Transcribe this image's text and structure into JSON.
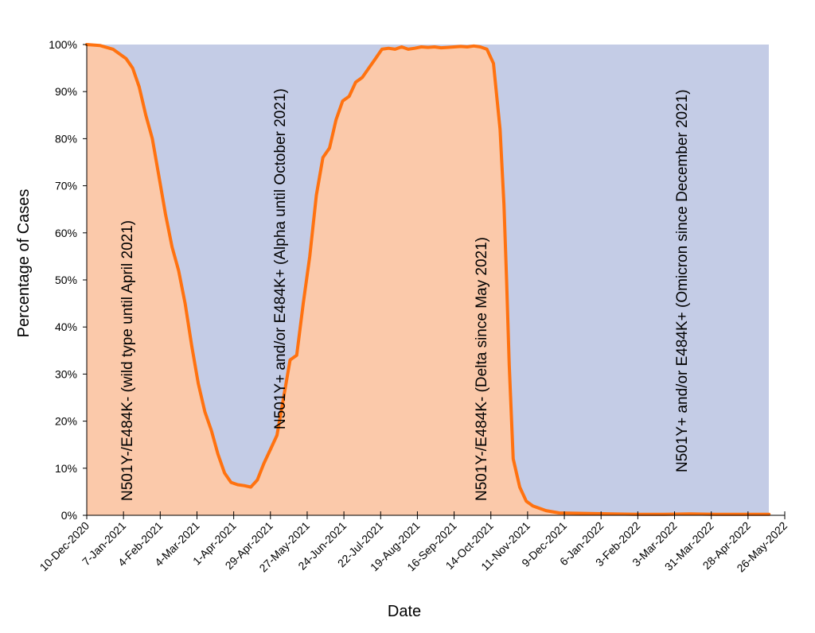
{
  "chart_data": {
    "type": "area",
    "title": "",
    "xlabel": "Date",
    "ylabel": "Percentage of Cases",
    "x_ticks": [
      "10-Dec-2020",
      "7-Jan-2021",
      "4-Feb-2021",
      "4-Mar-2021",
      "1-Apr-2021",
      "29-Apr-2021",
      "27-May-2021",
      "24-Jun-2021",
      "22-Jul-2021",
      "19-Aug-2021",
      "16-Sep-2021",
      "14-Oct-2021",
      "11-Nov-2021",
      "9-Dec-2021",
      "6-Jan-2022",
      "3-Feb-2022",
      "3-Mar-2022",
      "31-Mar-2022",
      "28-Apr-2022",
      "26-May-2022"
    ],
    "y_ticks": [
      "0%",
      "10%",
      "20%",
      "30%",
      "40%",
      "50%",
      "60%",
      "70%",
      "80%",
      "90%",
      "100%"
    ],
    "ylim": [
      0,
      100
    ],
    "grid": false,
    "colors": {
      "line": "#FF7210",
      "lower_fill": "#FBC9AA",
      "upper_fill": "#C4CCE6"
    },
    "series": [
      {
        "x_days": [
          0,
          10,
          20,
          30,
          35,
          40,
          45,
          50,
          55,
          60,
          65,
          70,
          75,
          80,
          85,
          90,
          95,
          100,
          105,
          110,
          115,
          120,
          125,
          130,
          135,
          140,
          145,
          150,
          155,
          160,
          165,
          170,
          175,
          180,
          185,
          190,
          195,
          200,
          205,
          210,
          215,
          220,
          225,
          230,
          235,
          240,
          245,
          250,
          255,
          260,
          265,
          270,
          275,
          280,
          285,
          290,
          295,
          300,
          305,
          310,
          315,
          318,
          320,
          322,
          325,
          330,
          335,
          340,
          350,
          360,
          380,
          400,
          420,
          440,
          460,
          480,
          500,
          520
        ],
        "values": [
          100,
          99.8,
          99,
          97,
          95,
          91,
          85,
          80,
          72,
          64,
          57,
          52,
          45,
          36,
          28,
          22,
          18,
          13,
          9,
          7,
          6.5,
          6.3,
          6,
          7.5,
          11,
          14,
          17,
          25,
          33,
          34,
          45,
          55,
          68,
          76,
          78,
          84,
          88,
          89,
          92,
          93,
          95,
          97,
          99,
          99.2,
          99,
          99.5,
          99,
          99.2,
          99.5,
          99.4,
          99.5,
          99.3,
          99.4,
          99.5,
          99.6,
          99.5,
          99.7,
          99.5,
          99,
          96,
          82,
          66,
          50,
          32,
          12,
          6,
          3,
          2,
          1,
          0.5,
          0.4,
          0.3,
          0.2,
          0.2,
          0.3,
          0.2,
          0.2,
          0.2
        ]
      }
    ],
    "annotations": [
      "N501Y-/E484K- (wild type until April 2021)",
      "N501Y+ and/or E484K+ (Alpha until October 2021)",
      "N501Y-/E484K- (Delta since May 2021)",
      "N501Y+ and/or E484K+ (Omicron since December 2021)"
    ]
  }
}
